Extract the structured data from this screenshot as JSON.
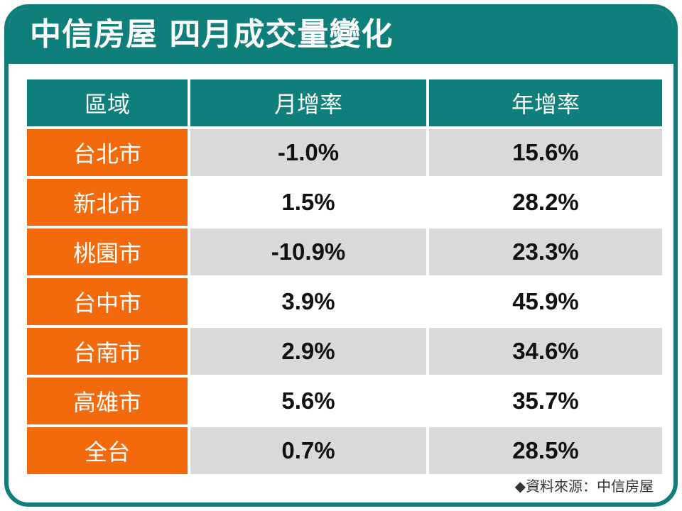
{
  "title": "中信房屋 四月成交量變化",
  "table": {
    "headers": [
      "區域",
      "月增率",
      "年增率"
    ],
    "rows": [
      {
        "region": "台北市",
        "mom": "-1.0%",
        "yoy": "15.6%"
      },
      {
        "region": "新北市",
        "mom": "1.5%",
        "yoy": "28.2%"
      },
      {
        "region": "桃園市",
        "mom": "-10.9%",
        "yoy": "23.3%"
      },
      {
        "region": "台中市",
        "mom": "3.9%",
        "yoy": "45.9%"
      },
      {
        "region": "台南市",
        "mom": "2.9%",
        "yoy": "34.6%"
      },
      {
        "region": "高雄市",
        "mom": "5.6%",
        "yoy": "35.7%"
      },
      {
        "region": "全台",
        "mom": "0.7%",
        "yoy": "28.5%"
      }
    ]
  },
  "source": "◆資料來源：中信房屋",
  "colors": {
    "teal": "#0e7f7b",
    "orange": "#f36a0c",
    "row_gray": "#d9d9d9"
  }
}
